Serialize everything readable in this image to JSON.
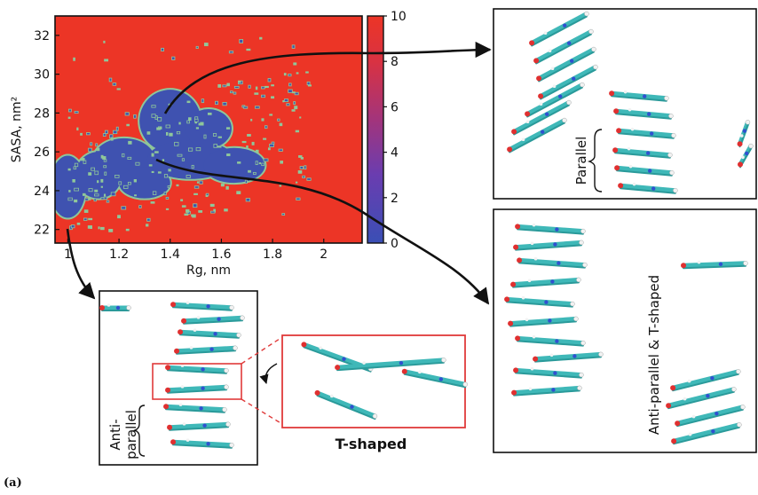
{
  "chart_data": {
    "type": "heatmap",
    "title": "",
    "xlabel": "Rg, nm",
    "ylabel": "SASA, nm²",
    "xlim": [
      0.95,
      2.15
    ],
    "ylim": [
      21.3,
      33.0
    ],
    "x_ticks": [
      1.0,
      1.2,
      1.4,
      1.6,
      1.8,
      2.0
    ],
    "x_tick_labels": [
      "1",
      "1.2",
      "1.4",
      "1.6",
      "1.8",
      "2"
    ],
    "y_ticks": [
      22,
      24,
      26,
      28,
      30,
      32
    ],
    "y_tick_labels": [
      "22",
      "24",
      "26",
      "28",
      "30",
      "32"
    ],
    "colorbar": {
      "min": 0,
      "max": 10,
      "ticks": [
        0,
        2,
        4,
        6,
        8,
        10
      ],
      "tick_labels": [
        "0",
        "2",
        "4",
        "6",
        "8",
        "10"
      ],
      "colors": [
        "#3a4fb5",
        "#7a3aa8",
        "#c0335a",
        "#e8322a"
      ]
    },
    "background_color": "#ec3526",
    "low_region_color": "#3f52b0",
    "contour_color": "#8fc79a",
    "low_regions": [
      {
        "x": 1.0,
        "y": 24.2,
        "rx": 0.07,
        "ry": 1.6
      },
      {
        "x": 1.12,
        "y": 24.8,
        "rx": 0.09,
        "ry": 1.2
      },
      {
        "x": 1.22,
        "y": 25.6,
        "rx": 0.12,
        "ry": 1.1
      },
      {
        "x": 1.4,
        "y": 27.6,
        "rx": 0.12,
        "ry": 1.6
      },
      {
        "x": 1.48,
        "y": 25.6,
        "rx": 0.17,
        "ry": 1.0
      },
      {
        "x": 1.65,
        "y": 25.3,
        "rx": 0.12,
        "ry": 0.9
      },
      {
        "x": 1.3,
        "y": 24.4,
        "rx": 0.1,
        "ry": 0.8
      },
      {
        "x": 1.55,
        "y": 27.2,
        "rx": 0.09,
        "ry": 1.0
      }
    ]
  },
  "figure_label": "(a)",
  "annotations": {
    "parallel": "Parallel",
    "anti_parallel_line1": "Anti-",
    "anti_parallel_line2": "parallel",
    "t_shaped": "T-shaped",
    "anti_parallel_t_shaped": "Anti-parallel & T-shaped"
  }
}
